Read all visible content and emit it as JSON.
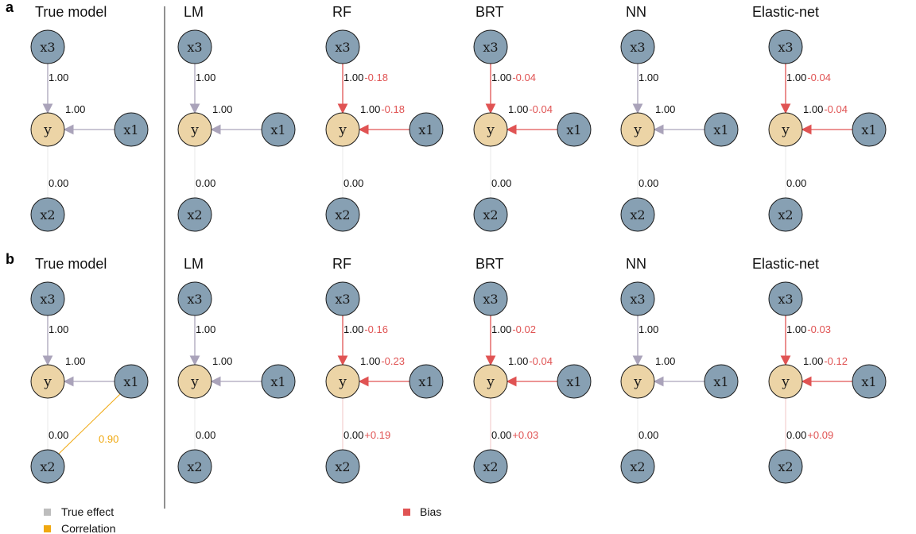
{
  "colors": {
    "node_x": "#87a0b3",
    "node_y": "#ecd4a6",
    "edge_true": "#aaa3ba",
    "edge_bias": "#e05353",
    "correlation": "#f0a80f",
    "legend_true": "#bdbdbd"
  },
  "node_labels": {
    "y": "y",
    "x1": "x1",
    "x2": "x2",
    "x3": "x3"
  },
  "rows": [
    {
      "panel": "a",
      "models": [
        {
          "title": "True model",
          "x3": {
            "coef": "1.00",
            "bias": "",
            "biased": false
          },
          "x1": {
            "coef": "1.00",
            "bias": "",
            "biased": false
          },
          "x2": {
            "coef": "0.00",
            "bias": "",
            "biased": false
          },
          "correlation": ""
        },
        {
          "title": "LM",
          "x3": {
            "coef": "1.00",
            "bias": "",
            "biased": false
          },
          "x1": {
            "coef": "1.00",
            "bias": "",
            "biased": false
          },
          "x2": {
            "coef": "0.00",
            "bias": "",
            "biased": false
          },
          "correlation": ""
        },
        {
          "title": "RF",
          "x3": {
            "coef": "1.00",
            "bias": "-0.18",
            "biased": true
          },
          "x1": {
            "coef": "1.00",
            "bias": "-0.18",
            "biased": true
          },
          "x2": {
            "coef": "0.00",
            "bias": "",
            "biased": false
          },
          "correlation": ""
        },
        {
          "title": "BRT",
          "x3": {
            "coef": "1.00",
            "bias": "-0.04",
            "biased": true
          },
          "x1": {
            "coef": "1.00",
            "bias": "-0.04",
            "biased": true
          },
          "x2": {
            "coef": "0.00",
            "bias": "",
            "biased": false
          },
          "correlation": ""
        },
        {
          "title": "NN",
          "x3": {
            "coef": "1.00",
            "bias": "",
            "biased": false
          },
          "x1": {
            "coef": "1.00",
            "bias": "",
            "biased": false
          },
          "x2": {
            "coef": "0.00",
            "bias": "",
            "biased": false
          },
          "correlation": ""
        },
        {
          "title": "Elastic-net",
          "x3": {
            "coef": "1.00",
            "bias": "-0.04",
            "biased": true
          },
          "x1": {
            "coef": "1.00",
            "bias": "-0.04",
            "biased": true
          },
          "x2": {
            "coef": "0.00",
            "bias": "",
            "biased": false
          },
          "correlation": ""
        }
      ]
    },
    {
      "panel": "b",
      "models": [
        {
          "title": "True model",
          "x3": {
            "coef": "1.00",
            "bias": "",
            "biased": false
          },
          "x1": {
            "coef": "1.00",
            "bias": "",
            "biased": false
          },
          "x2": {
            "coef": "0.00",
            "bias": "",
            "biased": false
          },
          "correlation": "0.90"
        },
        {
          "title": "LM",
          "x3": {
            "coef": "1.00",
            "bias": "",
            "biased": false
          },
          "x1": {
            "coef": "1.00",
            "bias": "",
            "biased": false
          },
          "x2": {
            "coef": "0.00",
            "bias": "",
            "biased": false
          },
          "correlation": ""
        },
        {
          "title": "RF",
          "x3": {
            "coef": "1.00",
            "bias": "-0.16",
            "biased": true
          },
          "x1": {
            "coef": "1.00",
            "bias": "-0.23",
            "biased": true
          },
          "x2": {
            "coef": "0.00",
            "bias": "+0.19",
            "biased": true
          },
          "correlation": ""
        },
        {
          "title": "BRT",
          "x3": {
            "coef": "1.00",
            "bias": "-0.02",
            "biased": true
          },
          "x1": {
            "coef": "1.00",
            "bias": "-0.04",
            "biased": true
          },
          "x2": {
            "coef": "0.00",
            "bias": "+0.03",
            "biased": true
          },
          "correlation": ""
        },
        {
          "title": "NN",
          "x3": {
            "coef": "1.00",
            "bias": "",
            "biased": false
          },
          "x1": {
            "coef": "1.00",
            "bias": "",
            "biased": false
          },
          "x2": {
            "coef": "0.00",
            "bias": "",
            "biased": false
          },
          "correlation": ""
        },
        {
          "title": "Elastic-net",
          "x3": {
            "coef": "1.00",
            "bias": "-0.03",
            "biased": true
          },
          "x1": {
            "coef": "1.00",
            "bias": "-0.12",
            "biased": true
          },
          "x2": {
            "coef": "0.00",
            "bias": "+0.09",
            "biased": true
          },
          "correlation": ""
        }
      ]
    }
  ],
  "legend": {
    "true_effect": "True effect",
    "correlation": "Correlation",
    "bias": "Bias"
  }
}
